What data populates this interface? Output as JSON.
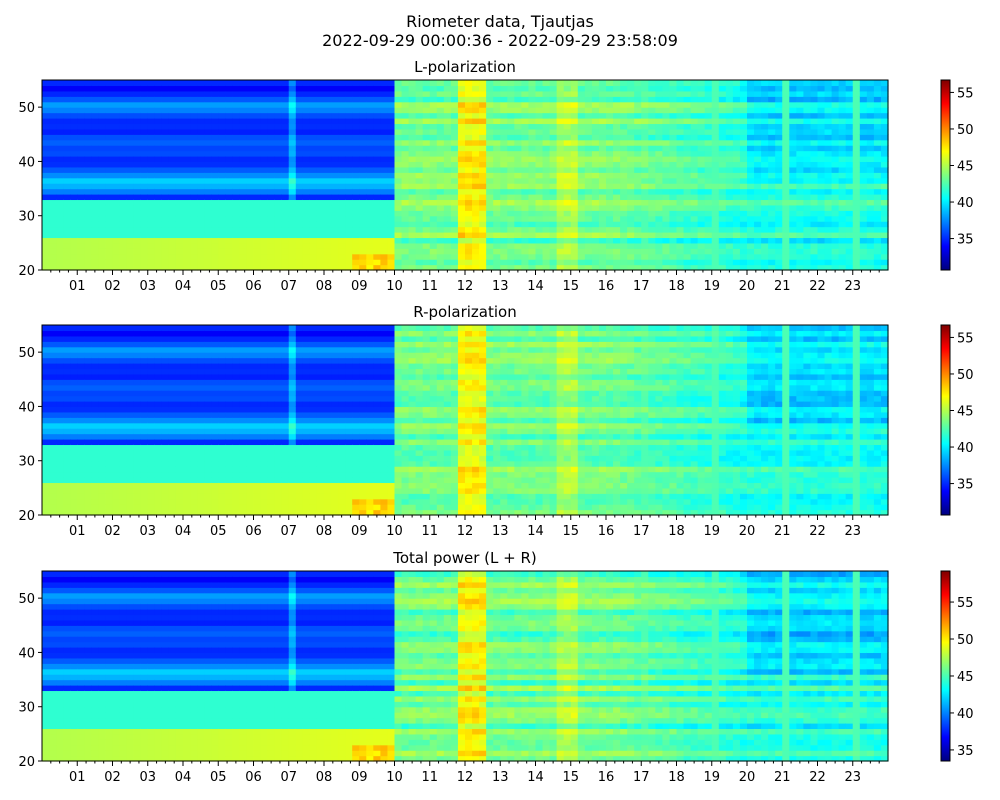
{
  "figure": {
    "title_line1": "Riometer data, Tjautjas",
    "title_line2": "2022-09-29 00:00:36 - 2022-09-29 23:58:09"
  },
  "chart_data": [
    {
      "type": "heatmap",
      "title": "L-polarization",
      "x": {
        "ticks": [
          "01",
          "02",
          "03",
          "04",
          "05",
          "06",
          "07",
          "08",
          "09",
          "10",
          "11",
          "12",
          "13",
          "14",
          "15",
          "16",
          "17",
          "18",
          "19",
          "20",
          "21",
          "22",
          "23"
        ],
        "range_hours": [
          0,
          24
        ]
      },
      "y": {
        "ylim": [
          20,
          55
        ],
        "ticks": [
          20,
          30,
          40,
          50
        ]
      },
      "colorbar": {
        "range": [
          30.7,
          56.7
        ],
        "ticks": [
          35,
          40,
          45,
          50,
          55
        ],
        "colormap": "jet"
      }
    },
    {
      "type": "heatmap",
      "title": "R-polarization",
      "x": {
        "ticks": [
          "01",
          "02",
          "03",
          "04",
          "05",
          "06",
          "07",
          "08",
          "09",
          "10",
          "11",
          "12",
          "13",
          "14",
          "15",
          "16",
          "17",
          "18",
          "19",
          "20",
          "21",
          "22",
          "23"
        ],
        "range_hours": [
          0,
          24
        ]
      },
      "y": {
        "ylim": [
          20,
          55
        ],
        "ticks": [
          20,
          30,
          40,
          50
        ]
      },
      "colorbar": {
        "range": [
          30.7,
          56.7
        ],
        "ticks": [
          35,
          40,
          45,
          50,
          55
        ],
        "colormap": "jet"
      }
    },
    {
      "type": "heatmap",
      "title": "Total power (L + R)",
      "x": {
        "ticks": [
          "01",
          "02",
          "03",
          "04",
          "05",
          "06",
          "07",
          "08",
          "09",
          "10",
          "11",
          "12",
          "13",
          "14",
          "15",
          "16",
          "17",
          "18",
          "19",
          "20",
          "21",
          "22",
          "23"
        ],
        "range_hours": [
          0,
          24
        ]
      },
      "y": {
        "ylim": [
          20,
          55
        ],
        "ticks": [
          20,
          30,
          40,
          50
        ]
      },
      "colorbar": {
        "range": [
          33.5,
          59.2
        ],
        "ticks": [
          35,
          40,
          45,
          50,
          55
        ],
        "colormap": "jet"
      }
    }
  ]
}
